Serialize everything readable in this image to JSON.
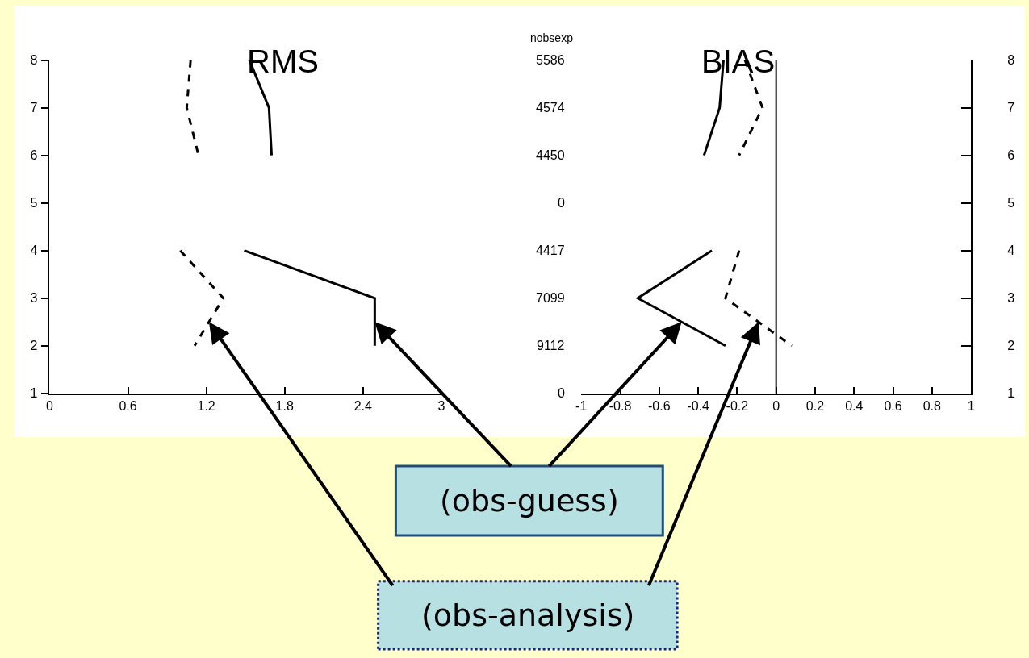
{
  "chart_data": [
    {
      "type": "line",
      "title": "RMS",
      "xlim": [
        0,
        3
      ],
      "xticks": [
        0,
        0.6,
        1.2,
        1.8,
        2.4,
        3
      ],
      "ylim": [
        1,
        8
      ],
      "yticks": [
        1,
        2,
        3,
        4,
        5,
        6,
        7,
        8
      ],
      "grid": false,
      "marker": "none",
      "series": [
        {
          "color": "#000000",
          "line_style": "solid",
          "x": [
            1.53,
            1.68,
            1.7,
            null,
            1.49,
            2.49,
            2.49
          ],
          "values": [
            8,
            7,
            6,
            null,
            4,
            3,
            2
          ]
        },
        {
          "color": "#000000",
          "line_style": "dashed",
          "x": [
            1.08,
            1.05,
            1.14,
            null,
            1.0,
            1.33,
            1.11
          ],
          "values": [
            8,
            7,
            6,
            null,
            4,
            3,
            2
          ]
        }
      ],
      "annotations": [
        "(obs-guess)",
        "(obs-analysis)"
      ]
    },
    {
      "type": "line",
      "title": "BIAS",
      "ylabel": "nobsexp",
      "xlim": [
        -1,
        1
      ],
      "xticks": [
        -1,
        -0.8,
        -0.6,
        -0.4,
        -0.2,
        0,
        0.2,
        0.4,
        0.6,
        0.8,
        1
      ],
      "ylim": [
        1,
        8
      ],
      "yticks": [
        1,
        2,
        3,
        4,
        5,
        6,
        7,
        8
      ],
      "annotations": [
        "5586",
        "4574",
        "4450",
        "0",
        "4417",
        "7099",
        "9112",
        "0"
      ],
      "grid": false,
      "marker": "none",
      "ref_lines": [
        {
          "axis": "x",
          "value": 0,
          "color": "#000000",
          "line_style": "solid"
        }
      ],
      "series": [
        {
          "color": "#000000",
          "line_style": "solid",
          "x": [
            -0.27,
            -0.29,
            -0.37,
            null,
            -0.33,
            -0.71,
            -0.26
          ],
          "values": [
            8,
            7,
            6,
            null,
            4,
            3,
            2
          ]
        },
        {
          "color": "#000000",
          "line_style": "dashed",
          "x": [
            -0.16,
            -0.07,
            -0.19,
            null,
            -0.19,
            -0.26,
            0.08
          ],
          "values": [
            8,
            7,
            6,
            null,
            4,
            3,
            2
          ]
        }
      ]
    }
  ]
}
